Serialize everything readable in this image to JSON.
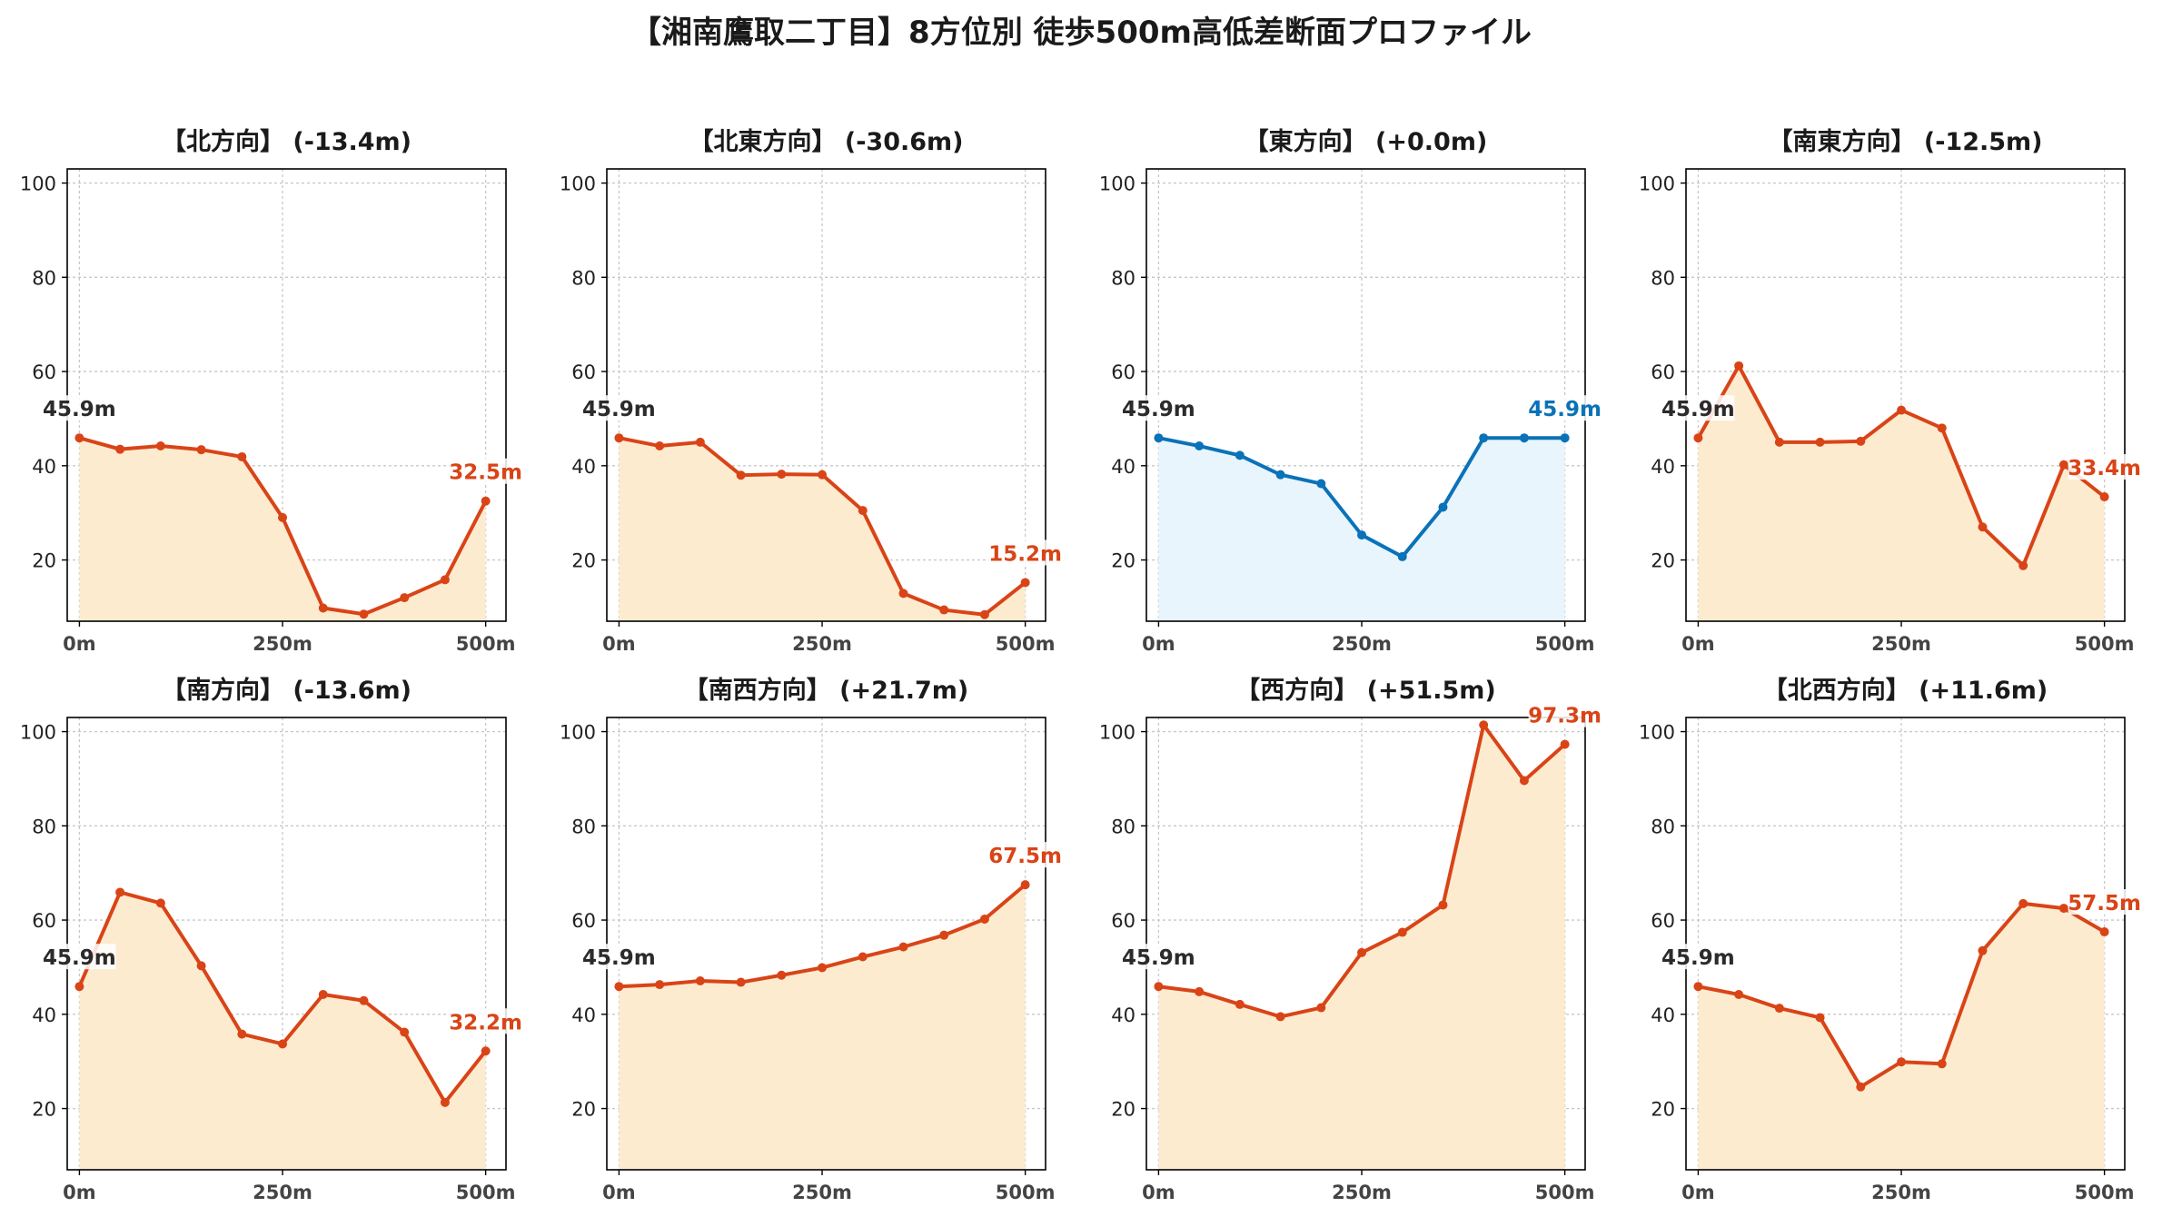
{
  "title": "【湘南鷹取二丁目】8方位別 徒歩500m高低差断面プロファイル",
  "colors": {
    "down_line": "#d94417",
    "down_fill": "#fdebd0",
    "flat_line": "#0a72b8",
    "flat_fill": "#e8f5fc",
    "start_label": "#2b2b2b"
  },
  "chart_data": [
    {
      "type": "area",
      "title": "【北方向】 (-13.4m)",
      "trend": "down",
      "x": [
        0,
        50,
        100,
        150,
        200,
        250,
        300,
        350,
        400,
        450,
        500
      ],
      "y": [
        45.9,
        43.5,
        44.2,
        43.4,
        41.9,
        29,
        9.8,
        8.5,
        12,
        15.8,
        32.5
      ],
      "start_label": "45.9m",
      "end_label": "32.5m",
      "xticks": [
        "0m",
        "250m",
        "500m"
      ],
      "yticks": [
        "20",
        "40",
        "60",
        "80",
        "100"
      ],
      "ylim": [
        7,
        103
      ],
      "grid": true
    },
    {
      "type": "area",
      "title": "【北東方向】 (-30.6m)",
      "trend": "down",
      "x": [
        0,
        50,
        100,
        150,
        200,
        250,
        300,
        350,
        400,
        450,
        500
      ],
      "y": [
        45.9,
        44.2,
        45,
        38,
        38.2,
        38.1,
        30.5,
        12.9,
        9.4,
        8.4,
        15.2
      ],
      "start_label": "45.9m",
      "end_label": "15.2m",
      "xticks": [
        "0m",
        "250m",
        "500m"
      ],
      "yticks": [
        "20",
        "40",
        "60",
        "80",
        "100"
      ],
      "ylim": [
        7,
        103
      ],
      "grid": true
    },
    {
      "type": "area",
      "title": "【東方向】 (+0.0m)",
      "trend": "flat",
      "x": [
        0,
        50,
        100,
        150,
        200,
        250,
        300,
        350,
        400,
        450,
        500
      ],
      "y": [
        45.9,
        44.2,
        42.2,
        38.1,
        36.2,
        25.3,
        20.7,
        31.2,
        45.9,
        45.9,
        45.9
      ],
      "start_label": "45.9m",
      "end_label": "45.9m",
      "xticks": [
        "0m",
        "250m",
        "500m"
      ],
      "yticks": [
        "20",
        "40",
        "60",
        "80",
        "100"
      ],
      "ylim": [
        7,
        103
      ],
      "grid": true
    },
    {
      "type": "area",
      "title": "【南東方向】 (-12.5m)",
      "trend": "down",
      "x": [
        0,
        50,
        100,
        150,
        200,
        250,
        300,
        350,
        400,
        450,
        500
      ],
      "y": [
        45.9,
        61.2,
        45,
        45,
        45.2,
        51.8,
        48,
        27,
        18.8,
        40.2,
        33.4
      ],
      "start_label": "45.9m",
      "end_label": "33.4m",
      "xticks": [
        "0m",
        "250m",
        "500m"
      ],
      "yticks": [
        "20",
        "40",
        "60",
        "80",
        "100"
      ],
      "ylim": [
        7,
        103
      ],
      "grid": true
    },
    {
      "type": "area",
      "title": "【南方向】 (-13.6m)",
      "trend": "down",
      "x": [
        0,
        50,
        100,
        150,
        200,
        250,
        300,
        350,
        400,
        450,
        500
      ],
      "y": [
        45.9,
        65.9,
        63.6,
        50.3,
        35.8,
        33.7,
        44.2,
        42.9,
        36.2,
        21.3,
        32.2
      ],
      "start_label": "45.9m",
      "end_label": "32.2m",
      "xticks": [
        "0m",
        "250m",
        "500m"
      ],
      "yticks": [
        "20",
        "40",
        "60",
        "80",
        "100"
      ],
      "ylim": [
        7,
        103
      ],
      "grid": true
    },
    {
      "type": "area",
      "title": "【南西方向】 (+21.7m)",
      "trend": "down",
      "x": [
        0,
        50,
        100,
        150,
        200,
        250,
        300,
        350,
        400,
        450,
        500
      ],
      "y": [
        45.9,
        46.3,
        47.1,
        46.8,
        48.3,
        49.9,
        52.2,
        54.3,
        56.8,
        60.2,
        67.5
      ],
      "start_label": "45.9m",
      "end_label": "67.5m",
      "xticks": [
        "0m",
        "250m",
        "500m"
      ],
      "yticks": [
        "20",
        "40",
        "60",
        "80",
        "100"
      ],
      "ylim": [
        7,
        103
      ],
      "grid": true
    },
    {
      "type": "area",
      "title": "【西方向】 (+51.5m)",
      "trend": "down",
      "x": [
        0,
        50,
        100,
        150,
        200,
        250,
        300,
        350,
        400,
        450,
        500
      ],
      "y": [
        45.9,
        44.8,
        42.1,
        39.5,
        41.4,
        53.1,
        57.4,
        63.2,
        101.4,
        89.6,
        97.3
      ],
      "start_label": "45.9m",
      "end_label": "97.3m",
      "xticks": [
        "0m",
        "250m",
        "500m"
      ],
      "yticks": [
        "20",
        "40",
        "60",
        "80",
        "100"
      ],
      "ylim": [
        7,
        103
      ],
      "grid": true
    },
    {
      "type": "area",
      "title": "【北西方向】 (+11.6m)",
      "trend": "down",
      "x": [
        0,
        50,
        100,
        150,
        200,
        250,
        300,
        350,
        400,
        450,
        500
      ],
      "y": [
        45.9,
        44.2,
        41.3,
        39.3,
        24.6,
        29.9,
        29.5,
        53.5,
        63.5,
        62.5,
        57.5
      ],
      "start_label": "45.9m",
      "end_label": "57.5m",
      "xticks": [
        "0m",
        "250m",
        "500m"
      ],
      "yticks": [
        "20",
        "40",
        "60",
        "80",
        "100"
      ],
      "ylim": [
        7,
        103
      ],
      "grid": true
    }
  ]
}
